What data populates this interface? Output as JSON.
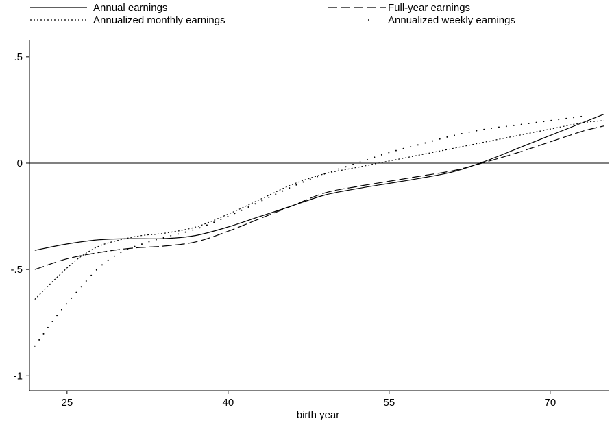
{
  "chart_data": {
    "type": "line",
    "title": "",
    "xlabel": "birth year",
    "ylabel": "",
    "xlim": [
      21.5,
      75.5
    ],
    "ylim": [
      -1.07,
      0.58
    ],
    "xticks": [
      25,
      40,
      55,
      70
    ],
    "yticks": [
      0.5,
      0,
      -0.5,
      -1
    ],
    "ytick_labels": [
      ".5",
      "0",
      "-.5",
      "-1"
    ],
    "reference_line_y": 0,
    "legend_position": "top",
    "series": [
      {
        "name": "Annual earnings",
        "style": "solid",
        "x": [
          22,
          25,
          28,
          31,
          34,
          37,
          40,
          43,
          46,
          49,
          52,
          55,
          58,
          61,
          64,
          67,
          70,
          73,
          75
        ],
        "y": [
          -0.41,
          -0.38,
          -0.36,
          -0.355,
          -0.355,
          -0.34,
          -0.3,
          -0.25,
          -0.2,
          -0.15,
          -0.12,
          -0.095,
          -0.07,
          -0.04,
          0.01,
          0.07,
          0.13,
          0.19,
          0.23
        ]
      },
      {
        "name": "Full-year earnings",
        "style": "dash",
        "x": [
          22,
          25,
          28,
          31,
          34,
          37,
          40,
          43,
          46,
          49,
          52,
          55,
          58,
          61,
          64,
          67,
          70,
          73,
          75
        ],
        "y": [
          -0.5,
          -0.45,
          -0.42,
          -0.4,
          -0.39,
          -0.37,
          -0.32,
          -0.26,
          -0.2,
          -0.14,
          -0.11,
          -0.085,
          -0.06,
          -0.035,
          0.005,
          0.05,
          0.1,
          0.15,
          0.175
        ]
      },
      {
        "name": "Annualized monthly earnings",
        "style": "dot",
        "x": [
          22,
          24,
          26,
          28,
          30,
          32,
          34,
          37,
          40,
          43,
          46,
          49,
          52,
          55,
          58,
          61,
          64,
          67,
          70,
          73,
          75
        ],
        "y": [
          -0.64,
          -0.54,
          -0.45,
          -0.39,
          -0.36,
          -0.34,
          -0.33,
          -0.3,
          -0.24,
          -0.17,
          -0.1,
          -0.05,
          -0.02,
          0.01,
          0.04,
          0.07,
          0.1,
          0.13,
          0.16,
          0.19,
          0.2
        ]
      },
      {
        "name": "Annualized weekly earnings",
        "style": "sparse-dot",
        "x": [
          22,
          24,
          26,
          28,
          30,
          32,
          34,
          37,
          40,
          43,
          46,
          49,
          52,
          55,
          58,
          61,
          64,
          67,
          70,
          73
        ],
        "y": [
          -0.86,
          -0.72,
          -0.6,
          -0.49,
          -0.42,
          -0.38,
          -0.35,
          -0.31,
          -0.25,
          -0.18,
          -0.11,
          -0.05,
          0.0,
          0.05,
          0.09,
          0.13,
          0.16,
          0.18,
          0.2,
          0.22
        ]
      }
    ]
  }
}
